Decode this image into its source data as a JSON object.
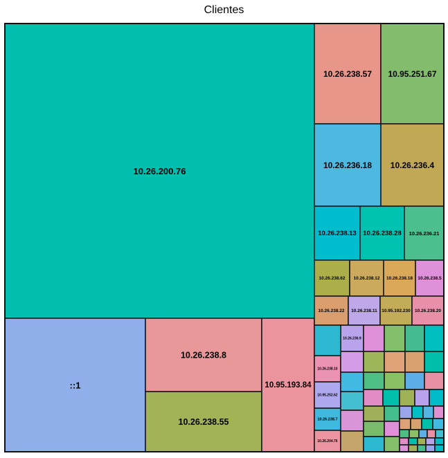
{
  "chart_data": {
    "type": "treemap",
    "title": "Clientes",
    "items": [
      {
        "label": "10.26.200.76",
        "value": 1000,
        "color": "#00BFAE"
      },
      {
        "label": "::1",
        "value": 175,
        "color": "#8FAEEA"
      },
      {
        "label": "10.26.238.8",
        "value": 95,
        "color": "#E89898"
      },
      {
        "label": "10.26.238.55",
        "value": 80,
        "color": "#A2B257"
      },
      {
        "label": "10.95.193.84",
        "value": 80,
        "color": "#EC949E"
      },
      {
        "label": "10.26.238.57",
        "value": 56,
        "color": "#E8968A"
      },
      {
        "label": "10.95.251.67",
        "value": 56,
        "color": "#82BC6C"
      },
      {
        "label": "10.26.236.18",
        "value": 49,
        "color": "#4DB8E0"
      },
      {
        "label": "10.26.236.4",
        "value": 49,
        "color": "#C1A855"
      },
      {
        "label": "10.26.238.13",
        "value": 16,
        "color": "#00BCCF"
      },
      {
        "label": "10.26.238.28",
        "value": 16,
        "color": "#00C2B1"
      },
      {
        "label": "10.26.236.21",
        "value": 15,
        "color": "#4BBF8D"
      },
      {
        "label": "10.26.238.62",
        "value": 9,
        "color": "#ACAE4A"
      },
      {
        "label": "10.26.238.12",
        "value": 9,
        "color": "#CBAA5E"
      },
      {
        "label": "10.26.238.18",
        "value": 9,
        "color": "#D9A858"
      },
      {
        "label": "10.26.238.5",
        "value": 8,
        "color": "#DE90D8"
      },
      {
        "label": "10.26.238.22",
        "value": 7,
        "color": "#DA9E6E"
      },
      {
        "label": "10.26.238.11",
        "value": 7,
        "color": "#BEA8EA"
      },
      {
        "label": "10.95.192.230",
        "value": 7,
        "color": "#C2AC58"
      },
      {
        "label": "10.26.238.20",
        "value": 7,
        "color": "#E890A8"
      },
      {
        "label": "10.26.236.9",
        "value": 5,
        "color": "#B8A3EC"
      },
      {
        "label": "10.26.238.10",
        "value": 4,
        "color": "#EC93B4"
      },
      {
        "label": "10.95.252.62",
        "value": 3,
        "color": "#AEA9EE"
      },
      {
        "label": "10.26.238.7",
        "value": 3,
        "color": "#3FB9DE"
      },
      {
        "label": "10.26.204.76",
        "value": 3,
        "color": "#EC95A0"
      }
    ],
    "unlabeled_tile_colors": [
      "#2DB8D2",
      "#DE8FD8",
      "#84BF6C",
      "#45BC90",
      "#00BFC0",
      "#D49CE6",
      "#9EB65A",
      "#DFA278",
      "#D9A070",
      "#00BFAA",
      "#40BAE0",
      "#4DBF85",
      "#8ABF64",
      "#5BAEE6",
      "#E890A4",
      "#44BFD2",
      "#E28CC6",
      "#00C0AB",
      "#A1B155",
      "#B8A2EC",
      "#00BBC8",
      "#D895D8",
      "#9FB05A",
      "#45BE8D",
      "#99A6EC",
      "#00C0C6",
      "#56B6E2",
      "#E08FD0",
      "#C5A66A",
      "#7ABC6C"
    ]
  }
}
